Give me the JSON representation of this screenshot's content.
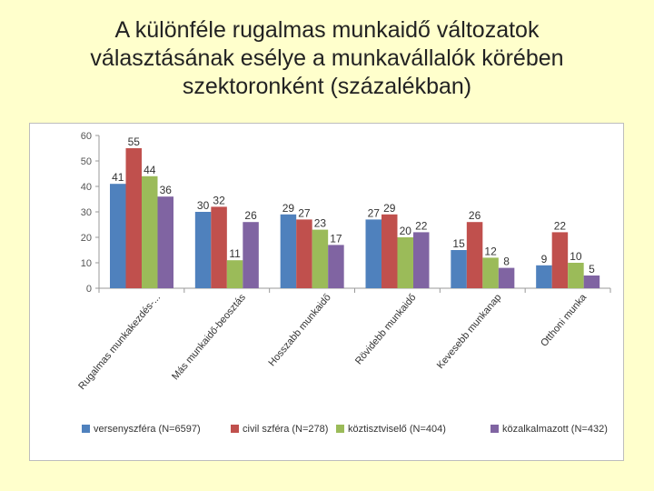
{
  "slide": {
    "title_lines": [
      "A különféle rugalmas munkaidő változatok",
      "választásának esélye a munkavállalók körében",
      "szektoronként (százalékban)"
    ]
  },
  "chart_data": {
    "type": "bar",
    "title": "",
    "xlabel": "",
    "ylabel": "",
    "ylim": [
      0,
      60
    ],
    "yticks": [
      0,
      10,
      20,
      30,
      40,
      50,
      60
    ],
    "grid": false,
    "legend_position": "bottom",
    "categories": [
      "Rugalmas munkakezdés-...",
      "Más munkaidő-beosztás",
      "Hosszabb munkaidő",
      "Rövidebb munkaidő",
      "Kevesebb munkanap",
      "Otthoni munka"
    ],
    "series": [
      {
        "name": "versenyszféra (N=6597)",
        "color": "#4f81bd",
        "values": [
          41,
          30,
          29,
          27,
          15,
          9
        ]
      },
      {
        "name": "civil szféra (N=278)",
        "color": "#c0504d",
        "values": [
          55,
          32,
          27,
          29,
          26,
          22
        ]
      },
      {
        "name": "köztisztviselő (N=404)",
        "color": "#9bbb59",
        "values": [
          44,
          11,
          23,
          20,
          12,
          10
        ]
      },
      {
        "name": "közalkalmazott (N=432)",
        "color": "#8064a2",
        "values": [
          36,
          26,
          17,
          22,
          8,
          5
        ]
      }
    ]
  }
}
